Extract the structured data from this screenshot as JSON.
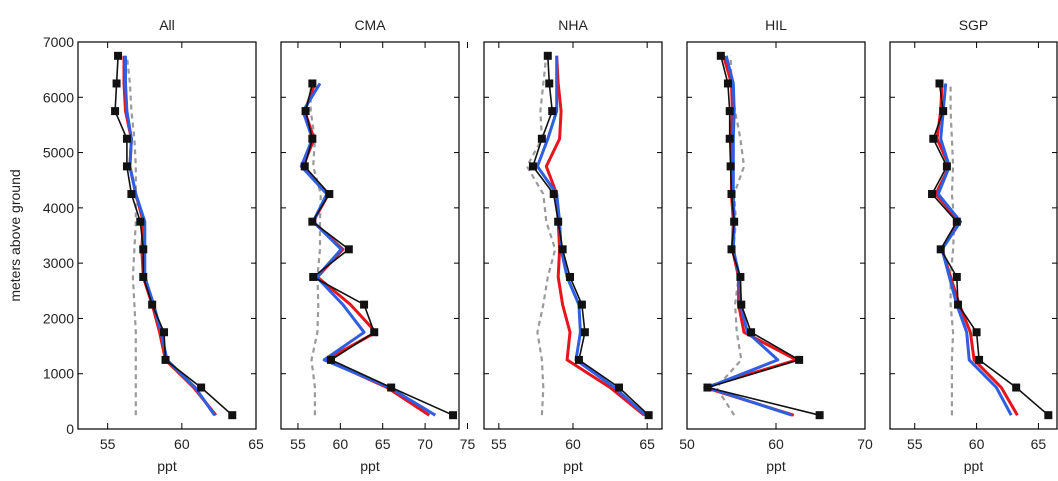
{
  "figure": {
    "ylabel": "meters above ground",
    "yticks": [
      0,
      1000,
      2000,
      3000,
      4000,
      5000,
      6000,
      7000
    ]
  },
  "colors": {
    "observed": "#111111",
    "red": "#e8141c",
    "blue": "#2f5fe0",
    "dashed": "#9a9a9a"
  },
  "chart_data": [
    {
      "type": "line",
      "title": "All",
      "xlabel": "ppt",
      "xlim": [
        53,
        65
      ],
      "xticks": [
        55,
        60,
        65
      ],
      "ylim": [
        0,
        7000
      ],
      "series": [
        {
          "key": "obs",
          "marker": true,
          "y": [
            250,
            750,
            1250,
            1750,
            2250,
            2750,
            3250,
            3750,
            4250,
            4750,
            5250,
            5750,
            6250,
            6750
          ],
          "x": [
            63.4,
            61.3,
            58.9,
            58.8,
            58.0,
            57.4,
            57.4,
            57.2,
            56.6,
            56.3,
            56.3,
            55.5,
            55.6,
            55.7
          ]
        },
        {
          "key": "red",
          "marker": false,
          "y": [
            250,
            750,
            1250,
            1750,
            2250,
            2750,
            3250,
            3750,
            4250,
            4750,
            5250,
            5750,
            6250,
            6750
          ],
          "x": [
            62.3,
            60.8,
            58.9,
            58.5,
            58.0,
            57.4,
            57.3,
            57.4,
            56.9,
            56.5,
            56.6,
            56.2,
            56.1,
            56.1
          ]
        },
        {
          "key": "blue",
          "marker": false,
          "y": [
            250,
            750,
            1250,
            1750,
            2250,
            2750,
            3250,
            3750,
            4250,
            4750,
            5250,
            5750,
            6250,
            6750
          ],
          "x": [
            62.2,
            60.9,
            59.0,
            58.6,
            58.1,
            57.5,
            57.5,
            57.5,
            56.9,
            56.5,
            56.6,
            56.3,
            56.2,
            56.2
          ]
        },
        {
          "key": "dashed",
          "marker": false,
          "y": [
            250,
            750,
            1250,
            1750,
            2250,
            2750,
            3250,
            3750,
            4250,
            4750,
            5250,
            5750,
            6250,
            6750
          ],
          "x": [
            56.9,
            56.9,
            56.9,
            56.9,
            56.8,
            56.7,
            56.8,
            56.9,
            56.9,
            56.9,
            56.8,
            56.6,
            56.5,
            56.3
          ]
        }
      ]
    },
    {
      "type": "line",
      "title": "CMA",
      "xlabel": "ppt",
      "xlim": [
        53,
        74
      ],
      "xticks": [
        55,
        60,
        65,
        70,
        75
      ],
      "ylim": [
        0,
        7000
      ],
      "series": [
        {
          "key": "obs",
          "marker": true,
          "y": [
            250,
            750,
            1250,
            1750,
            2250,
            2750,
            3250,
            3750,
            4250,
            4750,
            5250,
            5750,
            6250
          ],
          "x": [
            73.3,
            66.0,
            58.9,
            64.0,
            62.8,
            56.8,
            61.0,
            56.7,
            58.7,
            55.8,
            56.7,
            55.9,
            56.7
          ]
        },
        {
          "key": "red",
          "marker": false,
          "y": [
            250,
            750,
            1250,
            1750,
            2250,
            2750,
            3250,
            3750,
            4250,
            4750,
            5250,
            5750,
            6250
          ],
          "x": [
            70.5,
            65.5,
            58.3,
            64.2,
            61.2,
            57.3,
            60.3,
            56.8,
            58.6,
            55.6,
            56.9,
            55.8,
            57.0
          ]
        },
        {
          "key": "blue",
          "marker": false,
          "y": [
            250,
            750,
            1250,
            1750,
            2250,
            2750,
            3250,
            3750,
            4250,
            4750,
            5250,
            5750,
            6250
          ],
          "x": [
            71.2,
            65.8,
            58.1,
            62.8,
            60.3,
            57.2,
            60.1,
            56.8,
            58.4,
            55.4,
            56.7,
            55.6,
            57.6
          ]
        },
        {
          "key": "dashed",
          "marker": false,
          "y": [
            250,
            750,
            1250,
            1750,
            2250,
            2750,
            3250,
            3750,
            4250,
            4750,
            5250,
            5750,
            6250
          ],
          "x": [
            57.0,
            57.0,
            56.6,
            57.3,
            57.4,
            57.3,
            57.6,
            57.6,
            57.7,
            56.8,
            57.0,
            56.5,
            56.5
          ]
        }
      ]
    },
    {
      "type": "line",
      "title": "NHA",
      "xlabel": "ppt",
      "xlim": [
        54,
        66
      ],
      "xticks": [
        55,
        60,
        65
      ],
      "ylim": [
        0,
        7000
      ],
      "series": [
        {
          "key": "obs",
          "marker": true,
          "y": [
            250,
            750,
            1250,
            1750,
            2250,
            2750,
            3250,
            3750,
            4250,
            4750,
            5250,
            5750,
            6250,
            6750
          ],
          "x": [
            65.1,
            63.1,
            60.4,
            60.8,
            60.6,
            59.8,
            59.3,
            59.0,
            58.7,
            57.3,
            57.9,
            58.6,
            58.4,
            58.3
          ]
        },
        {
          "key": "red",
          "marker": false,
          "y": [
            250,
            750,
            1250,
            1750,
            2250,
            2750,
            3250,
            3750,
            4250,
            4750,
            5250,
            5750,
            6250,
            6750
          ],
          "x": [
            64.8,
            62.5,
            59.6,
            59.8,
            59.3,
            59.0,
            59.1,
            59.0,
            58.9,
            58.2,
            59.1,
            59.2,
            59.0,
            58.9
          ]
        },
        {
          "key": "blue",
          "marker": false,
          "y": [
            250,
            750,
            1250,
            1750,
            2250,
            2750,
            3250,
            3750,
            4250,
            4750,
            5250,
            5750,
            6250,
            6750
          ],
          "x": [
            64.9,
            62.8,
            60.2,
            60.5,
            60.4,
            59.6,
            59.2,
            59.1,
            58.9,
            57.6,
            58.3,
            58.9,
            58.9,
            58.9
          ]
        },
        {
          "key": "dashed",
          "marker": false,
          "y": [
            250,
            750,
            1250,
            1750,
            2250,
            2750,
            3250,
            3750,
            4250,
            4750,
            5250,
            5750,
            6250,
            6750
          ],
          "x": [
            57.9,
            58.0,
            57.9,
            57.6,
            58.0,
            58.3,
            58.8,
            58.2,
            58.0,
            56.9,
            57.9,
            57.8,
            58.0,
            58.2
          ]
        }
      ]
    },
    {
      "type": "line",
      "title": "HIL",
      "xlabel": "ppt",
      "xlim": [
        50,
        70
      ],
      "xticks": [
        50,
        60,
        70
      ],
      "ylim": [
        0,
        7000
      ],
      "series": [
        {
          "key": "obs",
          "marker": true,
          "y": [
            250,
            750,
            1250,
            1750,
            2250,
            2750,
            3250,
            3750,
            4250,
            4750,
            5250,
            5750,
            6250,
            6750
          ],
          "x": [
            64.9,
            52.3,
            62.6,
            57.2,
            56.1,
            56.0,
            55.0,
            55.3,
            55.0,
            54.9,
            54.8,
            54.8,
            54.6,
            53.8
          ]
        },
        {
          "key": "red",
          "marker": false,
          "y": [
            250,
            750,
            1250,
            1750,
            2250,
            2750,
            3250,
            3750,
            4250,
            4750,
            5250,
            5750,
            6250,
            6750
          ],
          "x": [
            62.0,
            52.0,
            62.3,
            56.4,
            55.8,
            55.8,
            55.1,
            55.2,
            55.0,
            55.0,
            55.0,
            55.1,
            55.0,
            54.1
          ]
        },
        {
          "key": "blue",
          "marker": false,
          "y": [
            250,
            750,
            1250,
            1750,
            2250,
            2750,
            3250,
            3750,
            4250,
            4750,
            5250,
            5750,
            6250,
            6750
          ],
          "x": [
            61.8,
            52.3,
            60.2,
            56.8,
            56.0,
            55.9,
            55.2,
            55.3,
            55.2,
            55.2,
            55.2,
            55.3,
            55.2,
            54.4
          ]
        },
        {
          "key": "dashed",
          "marker": false,
          "y": [
            250,
            750,
            1250,
            1750,
            2250,
            2750,
            3250,
            3750,
            4250,
            4750,
            5250,
            5750,
            6250,
            6750
          ],
          "x": [
            55.3,
            53.3,
            56.1,
            55.6,
            55.4,
            55.8,
            55.2,
            55.5,
            55.3,
            56.4,
            56.0,
            55.4,
            55.0,
            54.9
          ]
        }
      ]
    },
    {
      "type": "line",
      "title": "SGP",
      "xlabel": "ppt",
      "xlim": [
        53,
        66.5
      ],
      "xticks": [
        55,
        60,
        65
      ],
      "ylim": [
        0,
        7000
      ],
      "series": [
        {
          "key": "obs",
          "marker": true,
          "y": [
            250,
            750,
            1250,
            1750,
            2250,
            2750,
            3250,
            3750,
            4250,
            4750,
            5250,
            5750,
            6250
          ],
          "x": [
            65.8,
            63.2,
            60.2,
            60.0,
            58.5,
            58.4,
            57.1,
            58.4,
            56.4,
            57.6,
            56.5,
            57.3,
            57.0
          ]
        },
        {
          "key": "red",
          "marker": false,
          "y": [
            250,
            750,
            1250,
            1750,
            2250,
            2750,
            3250,
            3750,
            4250,
            4750,
            5250,
            5750,
            6250
          ],
          "x": [
            63.3,
            62.0,
            59.8,
            59.5,
            58.6,
            57.9,
            57.2,
            58.6,
            56.7,
            57.8,
            56.8,
            57.1,
            57.2
          ]
        },
        {
          "key": "blue",
          "marker": false,
          "y": [
            250,
            750,
            1250,
            1750,
            2250,
            2750,
            3250,
            3750,
            4250,
            4750,
            5250,
            5750,
            6250
          ],
          "x": [
            62.8,
            61.6,
            59.4,
            59.2,
            58.4,
            57.8,
            57.2,
            58.7,
            56.9,
            57.8,
            57.1,
            57.3,
            57.5
          ]
        },
        {
          "key": "dashed",
          "marker": false,
          "y": [
            250,
            750,
            1250,
            1750,
            2250,
            2750,
            3250,
            3750,
            4250,
            4750,
            5250,
            5750,
            6250
          ],
          "x": [
            58.0,
            58.0,
            58.0,
            58.1,
            57.9,
            57.9,
            58.1,
            58.2,
            58.0,
            58.1,
            58.0,
            57.9,
            57.9
          ]
        }
      ]
    }
  ]
}
